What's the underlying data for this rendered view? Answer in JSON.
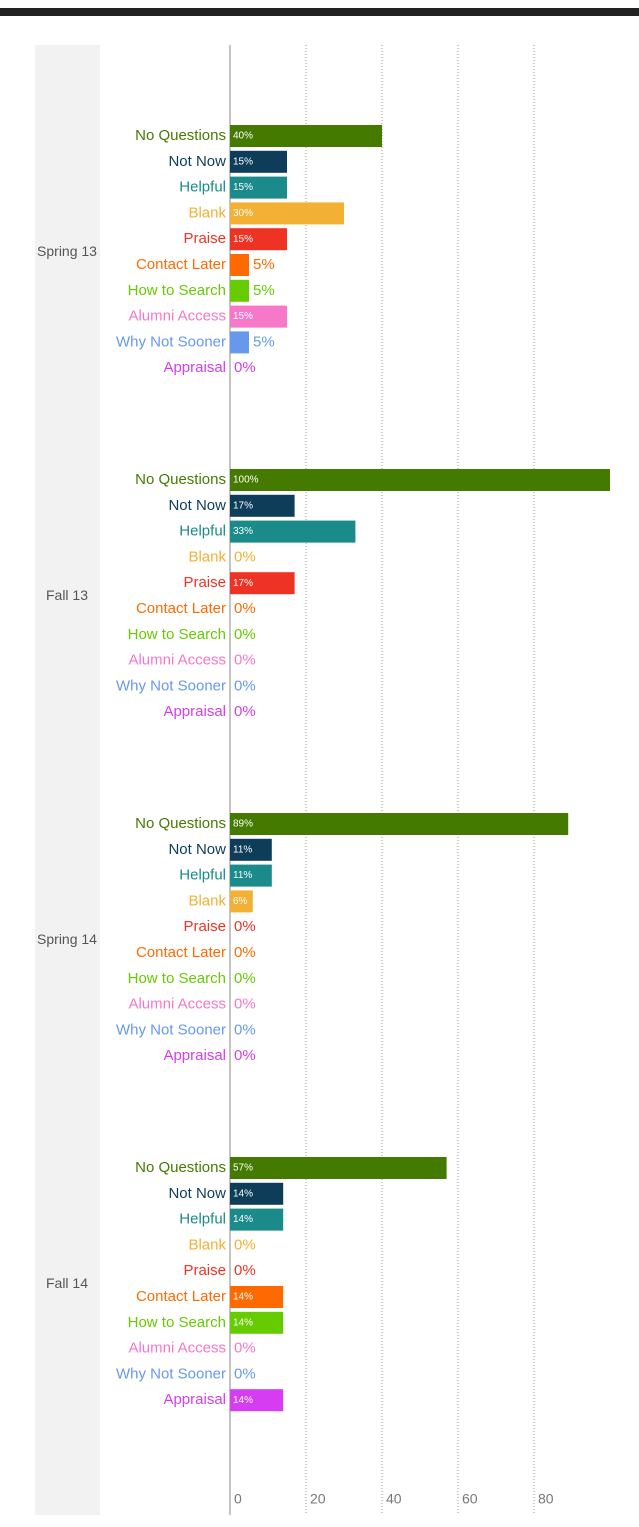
{
  "chart_data": {
    "type": "bar",
    "orientation": "horizontal",
    "categories": [
      "Spring 13",
      "Fall 13",
      "Spring 14",
      "Fall 14"
    ],
    "series": [
      {
        "name": "No Questions",
        "color": "#457a00",
        "values": [
          40,
          100,
          89,
          57
        ],
        "value_labels": [
          "40%",
          "100%",
          "89%",
          "57%"
        ]
      },
      {
        "name": "Not Now",
        "color": "#0e3d59",
        "values": [
          15,
          17,
          11,
          14
        ],
        "value_labels": [
          "15%",
          "17%",
          "11%",
          "14%"
        ]
      },
      {
        "name": "Helpful",
        "color": "#1a8a8a",
        "values": [
          15,
          33,
          11,
          14
        ],
        "value_labels": [
          "15%",
          "33%",
          "11%",
          "14%"
        ]
      },
      {
        "name": "Blank",
        "color": "#f2b134",
        "values": [
          30,
          0,
          6,
          0
        ],
        "value_labels": [
          "30%",
          "0%",
          "6%",
          "0%"
        ]
      },
      {
        "name": "Praise",
        "color": "#ee3224",
        "values": [
          15,
          17,
          0,
          0
        ],
        "value_labels": [
          "15%",
          "17%",
          "0%",
          "0%"
        ]
      },
      {
        "name": "Contact Later",
        "color": "#ff6a00",
        "values": [
          5,
          0,
          0,
          14
        ],
        "value_labels": [
          "5%",
          "0%",
          "0%",
          "14%"
        ]
      },
      {
        "name": "How to Search",
        "color": "#66cc00",
        "values": [
          5,
          0,
          0,
          14
        ],
        "value_labels": [
          "5%",
          "0%",
          "0%",
          "14%"
        ]
      },
      {
        "name": "Alumni Access",
        "color": "#f777c9",
        "values": [
          15,
          0,
          0,
          0
        ],
        "value_labels": [
          "15%",
          "0%",
          "0%",
          "0%"
        ]
      },
      {
        "name": "Why Not Sooner",
        "color": "#6699ee",
        "values": [
          5,
          0,
          0,
          0
        ],
        "value_labels": [
          "5%",
          "0%",
          "0%",
          "0%"
        ]
      },
      {
        "name": "Appraisal",
        "color": "#d63cf2",
        "values": [
          0,
          0,
          0,
          14
        ],
        "value_labels": [
          "0%",
          "0%",
          "0%",
          "14%"
        ]
      }
    ],
    "xlim": [
      0,
      100
    ],
    "xticks": [
      0,
      20,
      40,
      60,
      80
    ],
    "grid": true
  }
}
